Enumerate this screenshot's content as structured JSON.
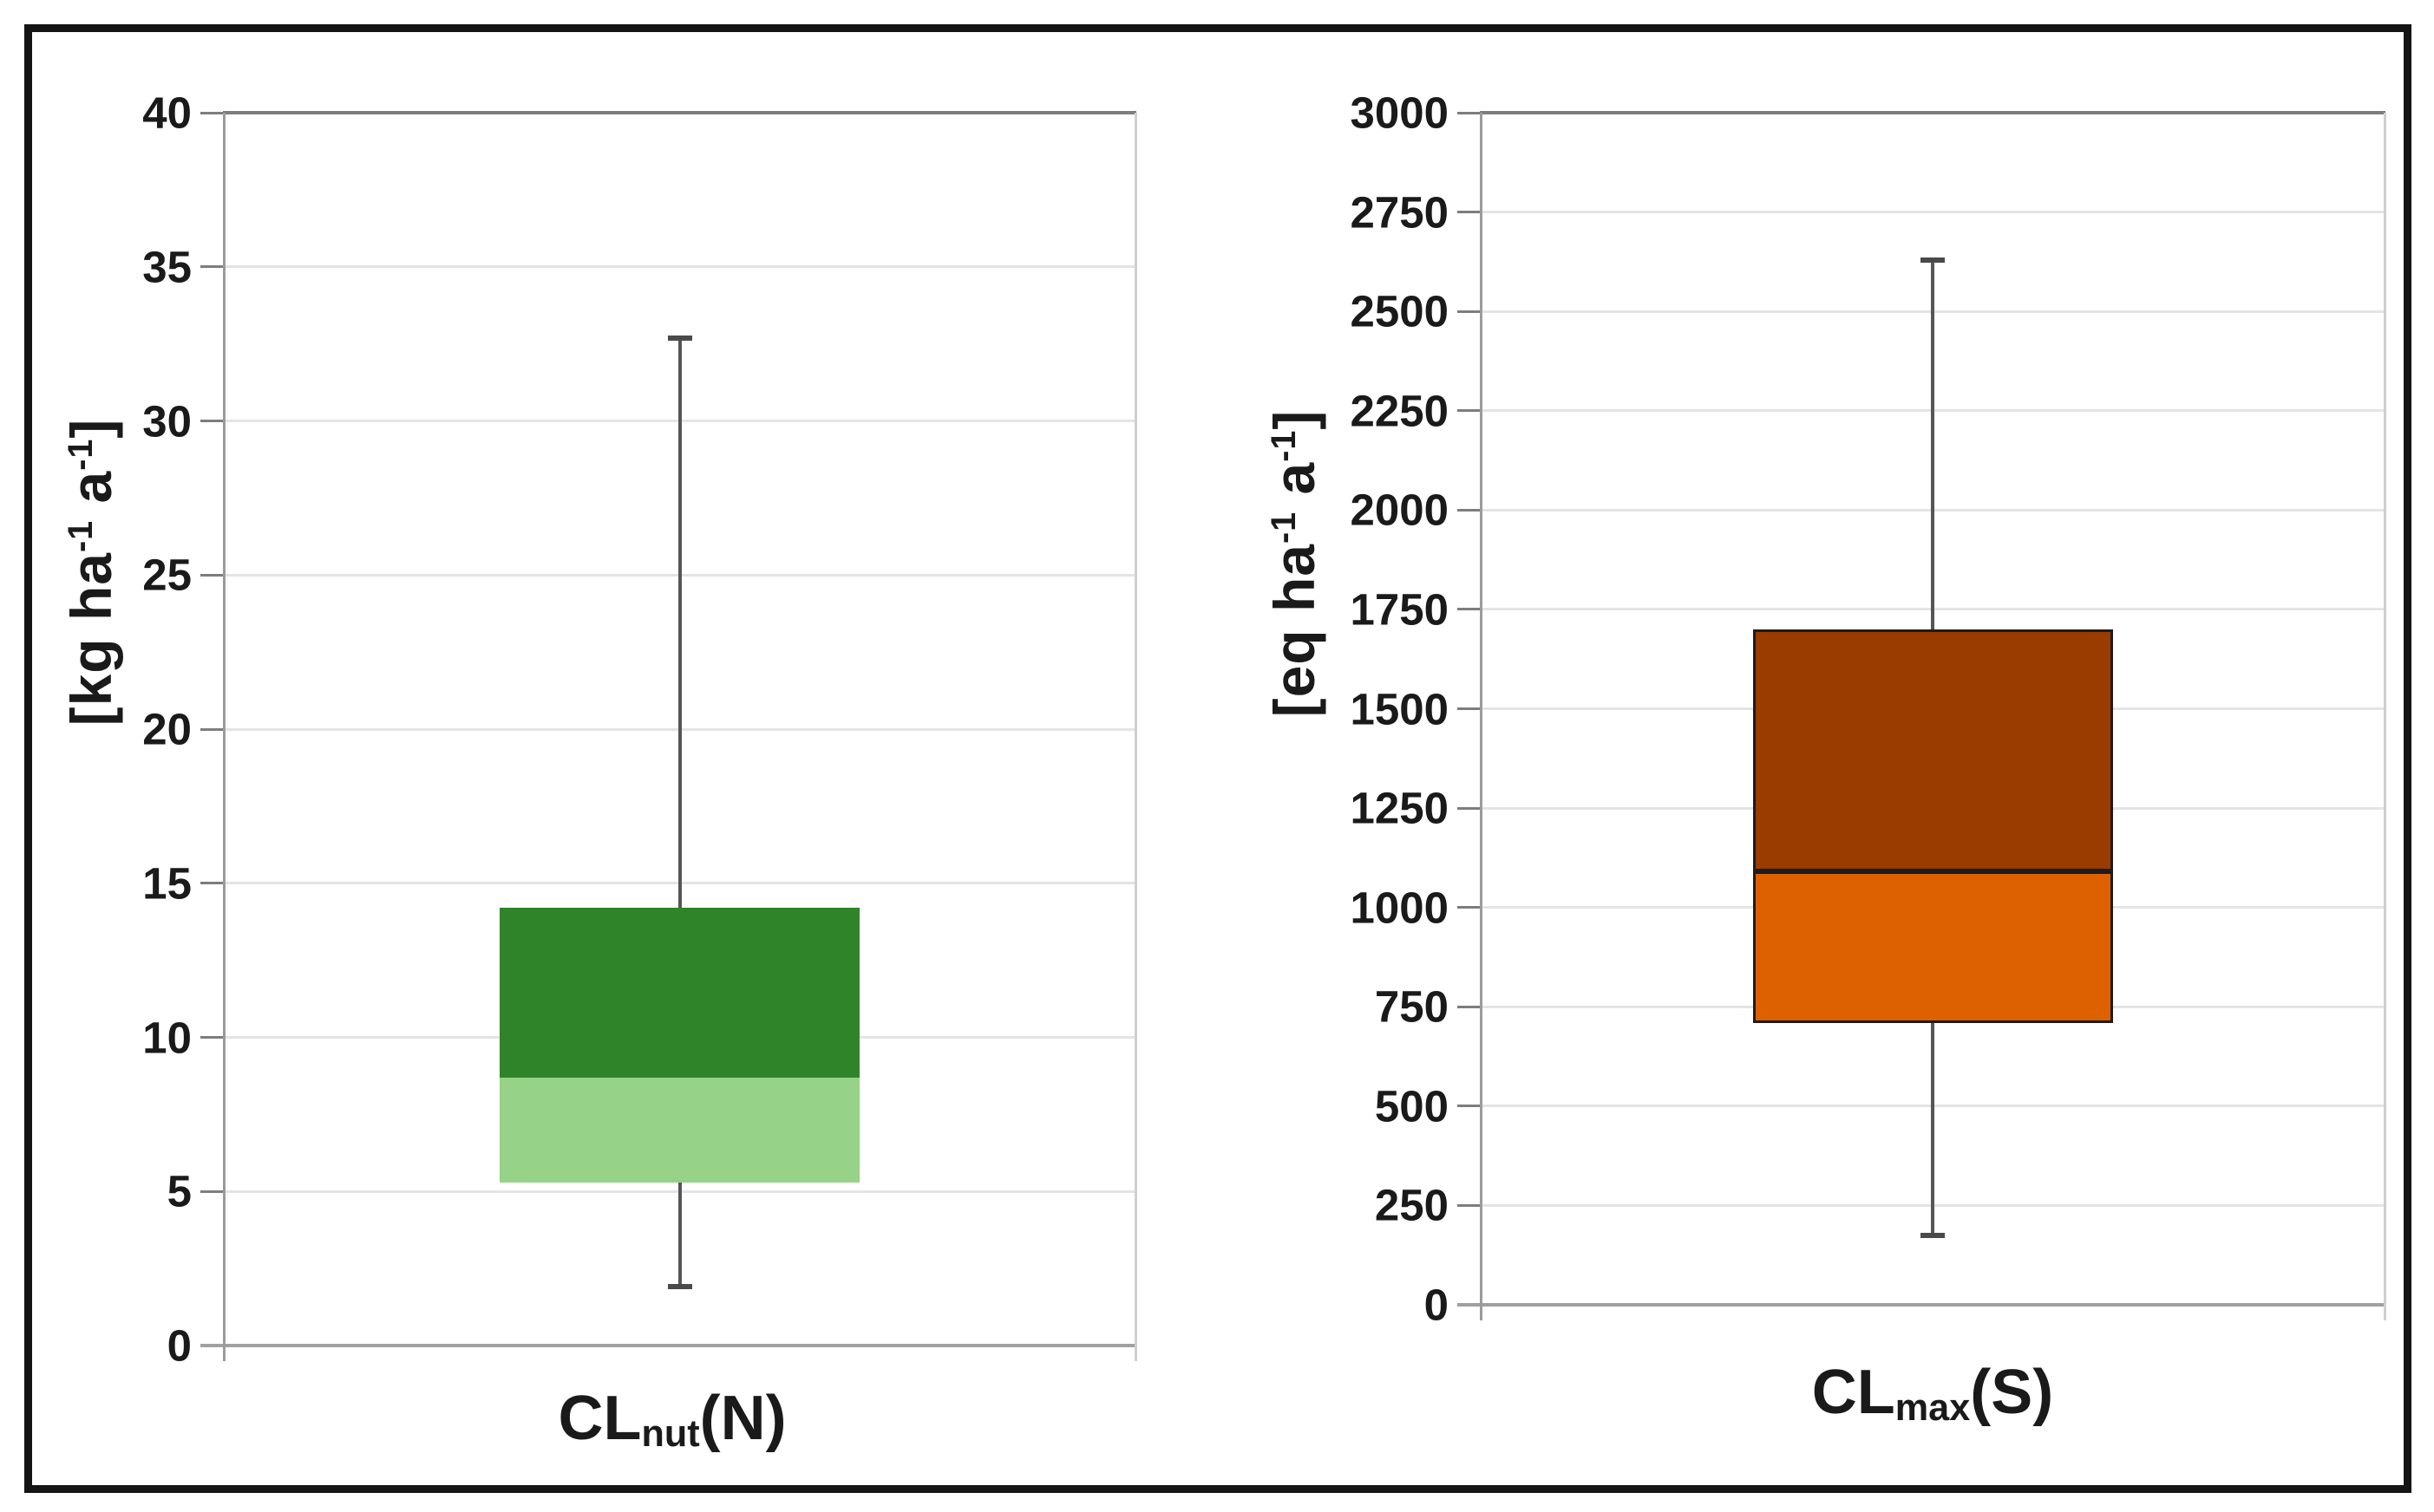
{
  "figure": {
    "background": "#FFFFFF",
    "border_color": "#141414"
  },
  "colors": {
    "text": "#1A1A1A",
    "gridline": "#E4E4E4",
    "axis_line": "#9B9B9B",
    "plot_top_border": "#7D7D7D",
    "plot_right_border": "#CFCFCF",
    "zero_line": "#A0A0A0",
    "whisker_line": "#565656",
    "whisker_cap": "#4A4A4A"
  },
  "chart_data": [
    {
      "type": "box",
      "category": "CLnut(N)",
      "category_parts": {
        "main": "CL",
        "sub": "nut",
        "tail": "(N)"
      },
      "ylabel": "[kg ha⁻¹ a⁻¹]",
      "ylabel_parts": {
        "pre": "[kg ha",
        "sup1": "-1",
        "mid": " a",
        "sup2": "-1",
        "post": "]"
      },
      "ylim": [
        0,
        40
      ],
      "ytick_step": 5,
      "yticks": [
        0,
        5,
        10,
        15,
        20,
        25,
        30,
        35,
        40
      ],
      "values": {
        "whisker_min": 1.9,
        "q1": 5.3,
        "median": 8.7,
        "q3": 14.2,
        "whisker_max": 32.7
      },
      "colors": {
        "box_lower": "#96D287",
        "box_upper": "#2F8429",
        "box_border": "none",
        "median_line": "none"
      },
      "grid": true,
      "legend": false
    },
    {
      "type": "box",
      "category": "CLmax(S)",
      "category_parts": {
        "main": "CL",
        "sub": "max",
        "tail": "(S)"
      },
      "ylabel": "[eq ha⁻¹ a⁻¹]",
      "ylabel_parts": {
        "pre": "[eq ha",
        "sup1": "-1",
        "mid": " a",
        "sup2": "-1",
        "post": "]"
      },
      "ylim": [
        0,
        3000
      ],
      "ytick_step": 250,
      "yticks": [
        0,
        250,
        500,
        750,
        1000,
        1250,
        1500,
        1750,
        2000,
        2250,
        2500,
        2750,
        3000
      ],
      "values": {
        "whisker_min": 175,
        "q1": 710,
        "median": 1090,
        "q3": 1700,
        "whisker_max": 2630
      },
      "grid": true,
      "legend": false,
      "colors": {
        "box_lower": "#DE6100",
        "box_upper": "#9A3B00",
        "box_border": "#1C1C1C",
        "median_line": "#1C1C1C"
      }
    }
  ]
}
